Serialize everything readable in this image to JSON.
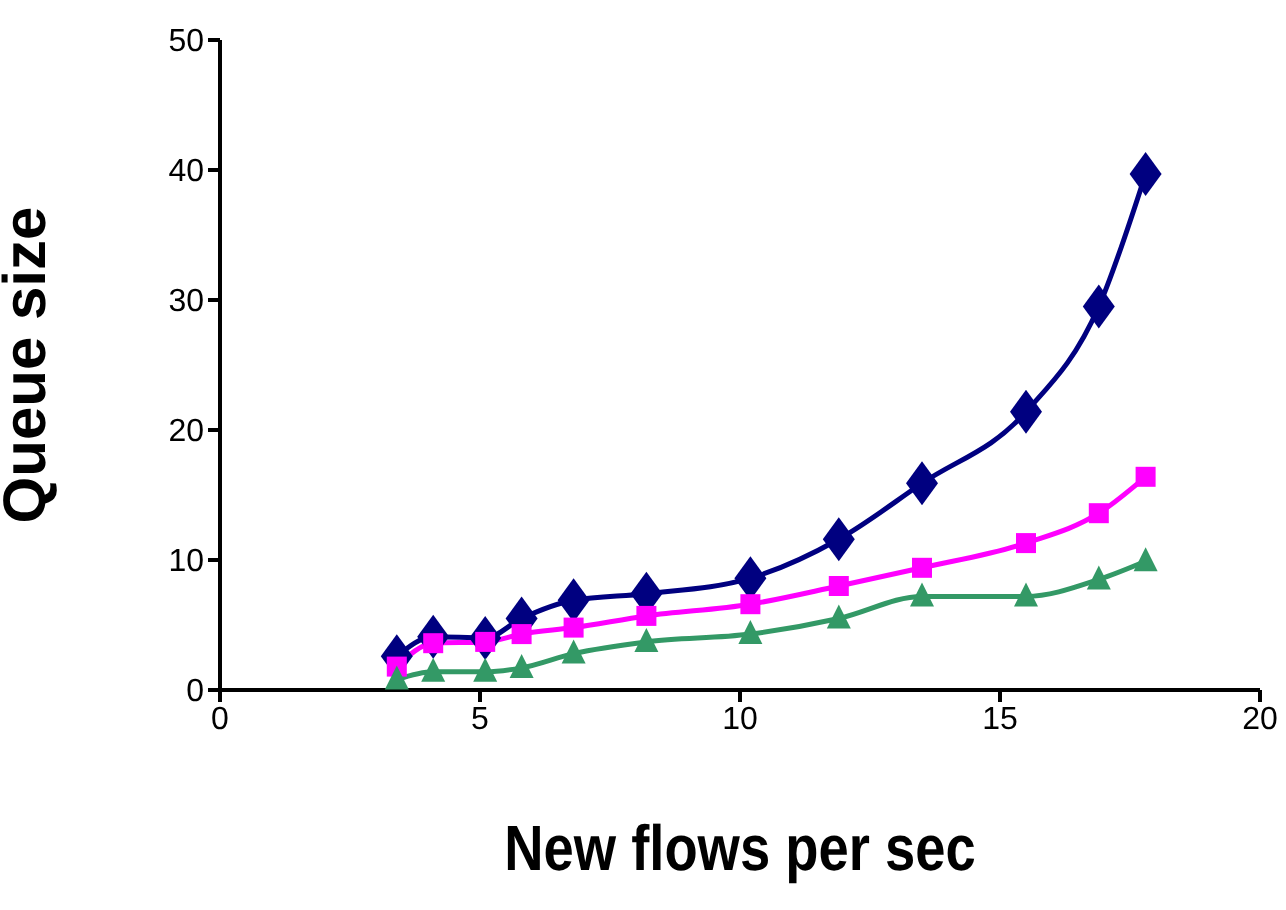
{
  "chart_data": {
    "type": "line",
    "xlabel": "New flows per sec",
    "ylabel": "Queue size",
    "xlim": [
      0,
      20
    ],
    "xticks": [
      0,
      5,
      10,
      15,
      20
    ],
    "ylim": [
      0,
      50
    ],
    "yticks": [
      0,
      10,
      20,
      30,
      40,
      50
    ],
    "grid": false,
    "legend": false,
    "line_style": "solid",
    "x": [
      3.4,
      4.1,
      5.1,
      5.8,
      6.8,
      8.2,
      10.2,
      11.9,
      13.5,
      15.5,
      16.9,
      17.8
    ],
    "series": [
      {
        "color": "#000080",
        "marker": "diamond",
        "values": [
          2.6,
          4.1,
          4.0,
          5.5,
          6.9,
          7.4,
          8.6,
          11.6,
          15.9,
          21.4,
          29.5,
          39.7
        ]
      },
      {
        "color": "#ff00ff",
        "marker": "square",
        "values": [
          1.8,
          3.6,
          3.7,
          4.3,
          4.8,
          5.7,
          6.6,
          8.0,
          9.4,
          11.3,
          13.6,
          16.4
        ]
      },
      {
        "color": "#339966",
        "marker": "triangle",
        "values": [
          0.8,
          1.4,
          1.4,
          1.7,
          2.8,
          3.7,
          4.3,
          5.5,
          7.2,
          7.2,
          8.5,
          9.9
        ]
      }
    ]
  }
}
